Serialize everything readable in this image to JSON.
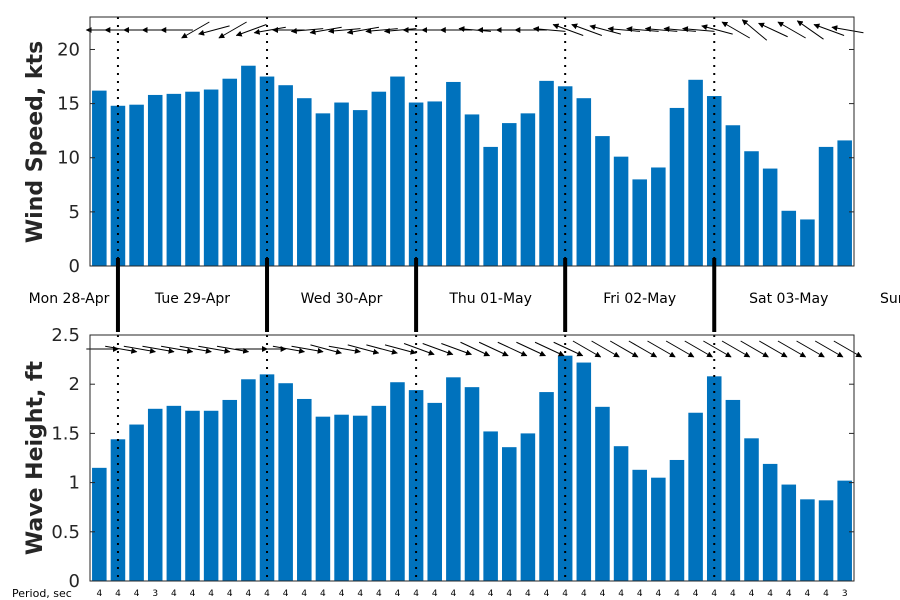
{
  "chart_data": [
    {
      "type": "bar",
      "ylabel": "Wind Speed, kts",
      "ylim": [
        0,
        23
      ],
      "yticks": [
        0,
        5,
        10,
        15,
        20
      ],
      "color": "#0072BD",
      "values": [
        16.2,
        14.8,
        14.9,
        15.8,
        15.9,
        16.1,
        16.3,
        17.3,
        18.5,
        17.5,
        16.7,
        15.5,
        14.1,
        15.1,
        14.4,
        16.1,
        17.5,
        15.1,
        15.2,
        17.0,
        14.0,
        11.0,
        13.2,
        14.1,
        17.1,
        16.6,
        15.5,
        12.0,
        10.1,
        8.0,
        9.1,
        14.6,
        17.2,
        15.7,
        13.0,
        10.6,
        9.0,
        5.1,
        4.3,
        11.0,
        11.6
      ],
      "direction_angles_deg": [
        180,
        180,
        180,
        180,
        180,
        150,
        165,
        150,
        160,
        170,
        180,
        175,
        170,
        175,
        170,
        175,
        175,
        180,
        180,
        180,
        185,
        180,
        180,
        180,
        185,
        200,
        200,
        195,
        185,
        185,
        185,
        185,
        185,
        195,
        210,
        220,
        205,
        210,
        215,
        200,
        190
      ]
    },
    {
      "type": "bar",
      "ylabel": "Wave Height, ft",
      "ylim": [
        0,
        2.5
      ],
      "yticks": [
        0,
        0.5,
        1,
        1.5,
        2,
        2.5
      ],
      "ytick_labels": [
        "0",
        "0.5",
        "1",
        "1.5",
        "2",
        "2.5"
      ],
      "color": "#0072BD",
      "values": [
        1.15,
        1.44,
        1.59,
        1.75,
        1.78,
        1.73,
        1.73,
        1.84,
        2.05,
        2.1,
        2.01,
        1.85,
        1.67,
        1.69,
        1.68,
        1.78,
        2.02,
        1.94,
        1.81,
        2.07,
        1.97,
        1.52,
        1.36,
        1.5,
        1.92,
        2.29,
        2.22,
        1.77,
        1.37,
        1.13,
        1.05,
        1.23,
        1.71,
        2.08,
        1.84,
        1.45,
        1.19,
        0.98,
        0.83,
        0.82,
        1.02
      ],
      "direction_angles_deg": [
        0,
        10,
        10,
        10,
        10,
        10,
        10,
        10,
        0,
        0,
        10,
        10,
        15,
        10,
        15,
        15,
        15,
        20,
        20,
        20,
        25,
        25,
        25,
        25,
        25,
        25,
        30,
        30,
        30,
        30,
        30,
        30,
        30,
        30,
        30,
        30,
        30,
        30,
        30,
        30,
        30
      ]
    }
  ],
  "days": [
    "Mon 28-Apr",
    "Tue 29-Apr",
    "Wed 30-Apr",
    "Thu 01-May",
    "Fri 02-May",
    "Sat 03-May",
    "Sun"
  ],
  "period": {
    "title": "Period, sec",
    "values": [
      "4",
      "4",
      "4",
      "3",
      "4",
      "4",
      "4",
      "4",
      "4",
      "4",
      "4",
      "4",
      "4",
      "4",
      "4",
      "4",
      "4",
      "4",
      "4",
      "4",
      "4",
      "4",
      "4",
      "4",
      "4",
      "4",
      "4",
      "4",
      "4",
      "4",
      "4",
      "4",
      "4",
      "4",
      "4",
      "4",
      "4",
      "4",
      "4",
      "4",
      "3"
    ]
  }
}
